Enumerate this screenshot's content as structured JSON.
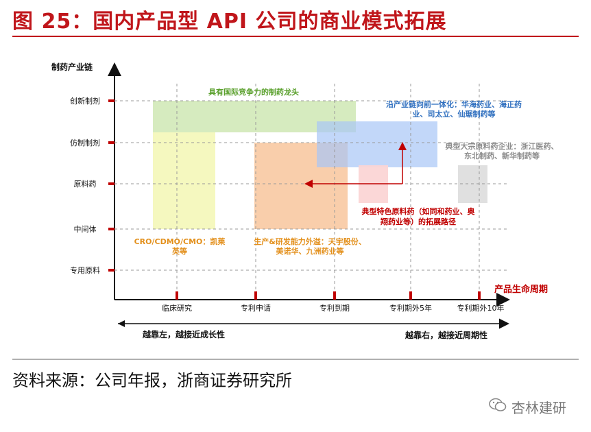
{
  "title": "图 25：国内产品型 API 公司的商业模式拓展",
  "source": "资料来源：公司年报，浙商证券研究所",
  "watermark": "杏林建研",
  "diagram": {
    "y_axis_title": "制药产业链",
    "x_axis_title": "产品生命周期",
    "y_ticks": [
      "创新制剂",
      "仿制制剂",
      "原料药",
      "中间体",
      "专用原料"
    ],
    "x_ticks": [
      "临床研究",
      "专利申请",
      "专利到期",
      "专利期外5年",
      "专利期外10年"
    ],
    "arrow_left_label": "越靠左，越接近成长性",
    "arrow_right_label": "越靠右，越接近周期性",
    "annotations": {
      "green_top": "具有国际竞争力的制药龙头",
      "blue_line1": "沿产业链向前一体化：华海药业、海正药",
      "blue_line2": "业、司太立、仙琚制药等",
      "gray_line1": "典型大宗原料药企业：浙江医药、",
      "gray_line2": "东北制药、新华制药等",
      "red_line1": "典型特色原料药（如同和药业、奥",
      "red_line2": "翔药业等）的拓展路径",
      "yellow_line1": "CRO/CDMO/CMO：凯莱",
      "yellow_line2": "英等",
      "orange_line1": "生产&研发能力外溢：天宇股份、",
      "orange_line2": "美诺华、九洲药业等"
    },
    "colors": {
      "title_red": "#c0161b",
      "green": "#cfe7b4",
      "yellow": "#f4f7b8",
      "orange": "#f8c9a2",
      "blue": "#a8c6f7",
      "pink": "#fbd5d5",
      "gray": "#dedede",
      "blue_text": "#2f6fbf",
      "green_text": "#5aa02c",
      "orange_text": "#e3901c",
      "gray_text": "#8c8c8c",
      "red_text": "#c00000"
    }
  }
}
